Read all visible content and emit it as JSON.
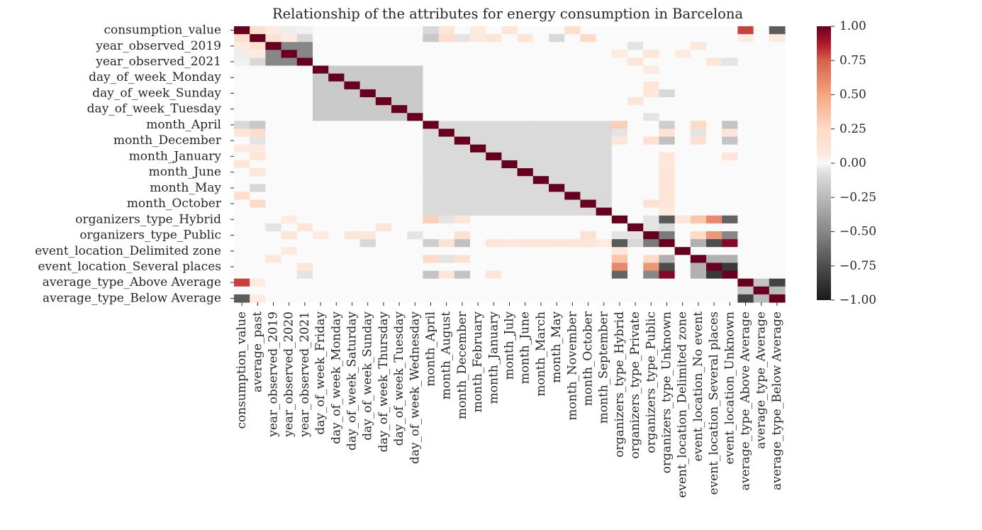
{
  "chart_data": {
    "type": "heatmap",
    "title": "Relationship of the attributes for energy consumption in Barcelona",
    "xlabel": "",
    "ylabel": "",
    "variables": [
      "consumption_value",
      "average_past",
      "year_observed_2019",
      "year_observed_2020",
      "year_observed_2021",
      "day_of_week_Friday",
      "day_of_week_Monday",
      "day_of_week_Saturday",
      "day_of_week_Sunday",
      "day_of_week_Thursday",
      "day_of_week_Tuesday",
      "day_of_week_Wednesday",
      "month_April",
      "month_August",
      "month_December",
      "month_February",
      "month_January",
      "month_July",
      "month_June",
      "month_March",
      "month_May",
      "month_November",
      "month_October",
      "month_September",
      "organizers_type_Hybrid",
      "organizers_type_Private",
      "organizers_type_Public",
      "organizers_type_Unknown",
      "event_location_Delimited zone",
      "event_location_No event",
      "event_location_Several places",
      "event_location_Unknown",
      "average_type_Above Average",
      "average_type_Average",
      "average_type_Below Average"
    ],
    "y_tick_labels_shown": [
      "consumption_value",
      "year_observed_2019",
      "year_observed_2021",
      "day_of_week_Monday",
      "day_of_week_Sunday",
      "day_of_week_Tuesday",
      "month_April",
      "month_December",
      "month_January",
      "month_June",
      "month_May",
      "month_October",
      "organizers_type_Hybrid",
      "organizers_type_Public",
      "event_location_Delimited zone",
      "event_location_Several places",
      "average_type_Above Average",
      "average_type_Below Average"
    ],
    "colorbar": {
      "min": -1.0,
      "max": 1.0,
      "ticks": [
        "1.00",
        "0.75",
        "0.50",
        "0.25",
        "0.00",
        "−0.25",
        "−0.50",
        "−0.75",
        "−1.00"
      ]
    },
    "colormap": "RdGy_r",
    "groups": [
      {
        "name": "year_observed",
        "start": 2,
        "end": 4,
        "within": -0.5
      },
      {
        "name": "day_of_week",
        "start": 5,
        "end": 11,
        "within": -0.17
      },
      {
        "name": "month",
        "start": 12,
        "end": 23,
        "within": -0.09
      },
      {
        "name": "organizers_type",
        "start": 24,
        "end": 27,
        "within": null
      },
      {
        "name": "event_location",
        "start": 28,
        "end": 31,
        "within": null
      },
      {
        "name": "average_type",
        "start": 32,
        "end": 34,
        "within": null
      }
    ],
    "correlations": [
      [
        "consumption_value",
        "average_past",
        0.2
      ],
      [
        "consumption_value",
        "year_observed_2019",
        0.05
      ],
      [
        "consumption_value",
        "year_observed_2020",
        -0.03
      ],
      [
        "consumption_value",
        "year_observed_2021",
        -0.02
      ],
      [
        "consumption_value",
        "month_April",
        -0.1
      ],
      [
        "consumption_value",
        "month_August",
        0.1
      ],
      [
        "consumption_value",
        "month_February",
        0.05
      ],
      [
        "consumption_value",
        "month_July",
        0.1
      ],
      [
        "consumption_value",
        "month_November",
        0.2
      ],
      [
        "consumption_value",
        "average_type_Above Average",
        0.8
      ],
      [
        "consumption_value",
        "average_type_Below Average",
        -0.68
      ],
      [
        "average_past",
        "year_observed_2019",
        0.15
      ],
      [
        "average_past",
        "year_observed_2020",
        0.05
      ],
      [
        "average_past",
        "year_observed_2021",
        -0.1
      ],
      [
        "average_past",
        "month_April",
        -0.18
      ],
      [
        "average_past",
        "month_August",
        0.2
      ],
      [
        "average_past",
        "month_December",
        -0.05
      ],
      [
        "average_past",
        "month_February",
        0.05
      ],
      [
        "average_past",
        "month_January",
        0.1
      ],
      [
        "average_past",
        "month_June",
        0.1
      ],
      [
        "average_past",
        "month_May",
        -0.1
      ],
      [
        "average_past",
        "month_October",
        0.25
      ],
      [
        "average_past",
        "average_type_Above Average",
        0.05
      ],
      [
        "average_past",
        "average_type_Below Average",
        0.05
      ],
      [
        "year_observed_2019",
        "organizers_type_Private",
        -0.05
      ],
      [
        "year_observed_2019",
        "event_location_No event",
        0.08
      ],
      [
        "year_observed_2020",
        "organizers_type_Hybrid",
        0.05
      ],
      [
        "year_observed_2020",
        "organizers_type_Public",
        0.1
      ],
      [
        "year_observed_2020",
        "event_location_Delimited zone",
        0.05
      ],
      [
        "year_observed_2021",
        "organizers_type_Private",
        0.1
      ],
      [
        "year_observed_2021",
        "event_location_Several places",
        0.1
      ],
      [
        "year_observed_2021",
        "event_location_Unknown",
        -0.05
      ],
      [
        "day_of_week_Friday",
        "organizers_type_Public",
        0.05
      ],
      [
        "day_of_week_Saturday",
        "organizers_type_Public",
        0.1
      ],
      [
        "day_of_week_Sunday",
        "organizers_type_Public",
        0.08
      ],
      [
        "day_of_week_Sunday",
        "organizers_type_Unknown",
        -0.1
      ],
      [
        "day_of_week_Thursday",
        "organizers_type_Private",
        0.1
      ],
      [
        "day_of_week_Wednesday",
        "organizers_type_Public",
        -0.05
      ],
      [
        "month_April",
        "organizers_type_Hybrid",
        0.3
      ],
      [
        "month_April",
        "organizers_type_Unknown",
        -0.15
      ],
      [
        "month_April",
        "event_location_No event",
        0.25
      ],
      [
        "month_April",
        "event_location_Unknown",
        -0.2
      ],
      [
        "month_August",
        "organizers_type_Hybrid",
        -0.05
      ],
      [
        "month_August",
        "organizers_type_Unknown",
        0.15
      ],
      [
        "month_August",
        "event_location_No event",
        -0.05
      ],
      [
        "month_August",
        "event_location_Unknown",
        0.1
      ],
      [
        "month_December",
        "organizers_type_Hybrid",
        0.1
      ],
      [
        "month_December",
        "organizers_type_Public",
        0.15
      ],
      [
        "month_December",
        "organizers_type_Unknown",
        -0.22
      ],
      [
        "month_December",
        "event_location_No event",
        0.15
      ],
      [
        "month_December",
        "event_location_Unknown",
        -0.2
      ],
      [
        "month_January",
        "organizers_type_Unknown",
        0.1
      ],
      [
        "month_January",
        "event_location_Unknown",
        0.1
      ],
      [
        "month_June",
        "organizers_type_Unknown",
        0.1
      ],
      [
        "month_July",
        "organizers_type_Unknown",
        0.08
      ],
      [
        "month_March",
        "organizers_type_Unknown",
        0.1
      ],
      [
        "month_May",
        "organizers_type_Unknown",
        0.12
      ],
      [
        "month_November",
        "organizers_type_Unknown",
        0.1
      ],
      [
        "month_October",
        "organizers_type_Public",
        0.15
      ],
      [
        "month_October",
        "organizers_type_Unknown",
        0.1
      ],
      [
        "month_September",
        "organizers_type_Unknown",
        0.05
      ],
      [
        "organizers_type_Hybrid",
        "organizers_type_Public",
        -0.05
      ],
      [
        "organizers_type_Hybrid",
        "organizers_type_Unknown",
        -0.7
      ],
      [
        "organizers_type_Hybrid",
        "event_location_Delimited zone",
        0.08
      ],
      [
        "organizers_type_Hybrid",
        "event_location_No event",
        0.35
      ],
      [
        "organizers_type_Hybrid",
        "event_location_Several places",
        0.6
      ],
      [
        "organizers_type_Hybrid",
        "event_location_Unknown",
        -0.65
      ],
      [
        "organizers_type_Private",
        "organizers_type_Public",
        -0.05
      ],
      [
        "organizers_type_Private",
        "organizers_type_Unknown",
        -0.1
      ],
      [
        "organizers_type_Public",
        "organizers_type_Unknown",
        -0.55
      ],
      [
        "organizers_type_Public",
        "event_location_No event",
        0.25
      ],
      [
        "organizers_type_Public",
        "event_location_Several places",
        0.55
      ],
      [
        "organizers_type_Public",
        "event_location_Unknown",
        -0.5
      ],
      [
        "organizers_type_Unknown",
        "event_location_No event",
        -0.3
      ],
      [
        "organizers_type_Unknown",
        "event_location_Several places",
        -0.75
      ],
      [
        "organizers_type_Unknown",
        "event_location_Unknown",
        0.95
      ],
      [
        "event_location_No event",
        "event_location_Several places",
        -0.3
      ],
      [
        "event_location_No event",
        "event_location_Unknown",
        -0.3
      ],
      [
        "event_location_Several places",
        "event_location_Unknown",
        -0.85
      ],
      [
        "average_type_Above Average",
        "average_type_Average",
        -0.2
      ],
      [
        "average_type_Above Average",
        "average_type_Below Average",
        -0.8
      ],
      [
        "average_type_Average",
        "average_type_Below Average",
        -0.25
      ]
    ]
  }
}
